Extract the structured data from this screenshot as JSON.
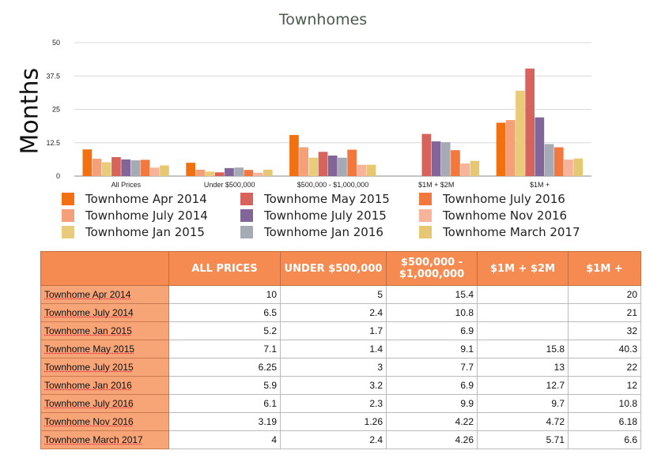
{
  "chart_data": {
    "type": "bar",
    "title": "Townhomes",
    "ylabel": "Months",
    "ylim": [
      0,
      50
    ],
    "yticks": [
      "0",
      "12.5",
      "25",
      "37.5",
      "50"
    ],
    "ytick_values": [
      0,
      12.5,
      25,
      37.5,
      50
    ],
    "grid": true,
    "legend_position": "bottom",
    "categories": [
      "All Prices",
      "Under $500,000",
      "$500,000 - $1,000,000",
      "$1M + $2M",
      "$1M +"
    ],
    "series": [
      {
        "name": "Townhome Apr 2014",
        "color": "#f2700f",
        "values": [
          10,
          5,
          15.4,
          null,
          20
        ]
      },
      {
        "name": "Townhome July 2014",
        "color": "#f5a079",
        "values": [
          6.5,
          2.4,
          10.8,
          null,
          21
        ]
      },
      {
        "name": "Townhome Jan 2015",
        "color": "#e8cc79",
        "values": [
          5.2,
          1.7,
          6.9,
          null,
          32
        ]
      },
      {
        "name": "Townhome May 2015",
        "color": "#d8635d",
        "values": [
          7.1,
          1.4,
          9.1,
          15.8,
          40.3
        ]
      },
      {
        "name": "Townhome July 2015",
        "color": "#82669a",
        "values": [
          6.25,
          3,
          7.7,
          13,
          22
        ]
      },
      {
        "name": "Townhome Jan 2016",
        "color": "#a6aab5",
        "values": [
          5.9,
          3.2,
          6.9,
          12.7,
          12
        ]
      },
      {
        "name": "Townhome July 2016",
        "color": "#f2783d",
        "values": [
          6.1,
          2.3,
          9.9,
          9.7,
          10.8
        ]
      },
      {
        "name": "Townhome Nov 2016",
        "color": "#f8b49a",
        "values": [
          3.19,
          1.26,
          4.22,
          4.72,
          6.18
        ]
      },
      {
        "name": "Townhome March 2017",
        "color": "#e6c872",
        "values": [
          4,
          2.4,
          4.26,
          5.71,
          6.6
        ]
      }
    ]
  },
  "table": {
    "headers": [
      "",
      "ALL PRICES",
      "UNDER $500,000",
      "$500,000 - $1,000,000",
      "$1M + $2M",
      "$1M +"
    ],
    "rows": [
      {
        "label": "Townhome Apr 2014",
        "cells": [
          "10",
          "5",
          "15.4",
          "",
          "20"
        ]
      },
      {
        "label": "Townhome July 2014",
        "cells": [
          "6.5",
          "2.4",
          "10.8",
          "",
          "21"
        ]
      },
      {
        "label": "Townhome Jan 2015",
        "cells": [
          "5.2",
          "1.7",
          "6.9",
          "",
          "32"
        ]
      },
      {
        "label": "Townhome May 2015",
        "cells": [
          "7.1",
          "1.4",
          "9.1",
          "15.8",
          "40.3"
        ]
      },
      {
        "label": "Townhome July 2015",
        "cells": [
          "6.25",
          "3",
          "7.7",
          "13",
          "22"
        ]
      },
      {
        "label": "Townhome Jan 2016",
        "cells": [
          "5.9",
          "3.2",
          "6.9",
          "12.7",
          "12"
        ]
      },
      {
        "label": "Townhome July 2016",
        "cells": [
          "6.1",
          "2.3",
          "9.9",
          "9.7",
          "10.8"
        ]
      },
      {
        "label": "Townhome Nov 2016",
        "cells": [
          "3.19",
          "1.26",
          "4.22",
          "4.72",
          "6.18"
        ]
      },
      {
        "label": "Townhome March 2017",
        "cells": [
          "4",
          "2.4",
          "4.26",
          "5.71",
          "6.6"
        ]
      }
    ]
  }
}
